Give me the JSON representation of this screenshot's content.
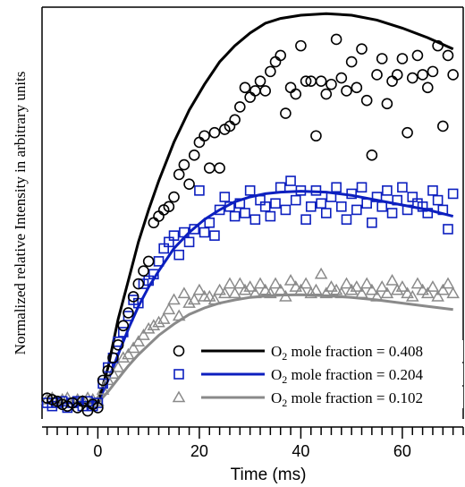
{
  "chart_data": {
    "type": "scatter",
    "title": "",
    "xlabel": "Time (ms)",
    "ylabel": "Normalized relative Intensity in arbitrary units",
    "xlim": [
      -11,
      72
    ],
    "ylim": [
      -0.3,
      12.5
    ],
    "x_ticks": [
      0,
      20,
      40,
      60
    ],
    "legend_position": "bottom-right",
    "grid": false,
    "series": [
      {
        "name": "O2 mole fraction = 0.408",
        "label_prefix": "O",
        "label_sub": "2",
        "label_suffix": " mole fraction = 0.408",
        "color": "#000000",
        "marker": "circle",
        "fit_color": "#000000",
        "points": [
          [
            -10,
            0.35
          ],
          [
            -9,
            0.3
          ],
          [
            -8,
            0.25
          ],
          [
            -7,
            0.15
          ],
          [
            -6,
            0.1
          ],
          [
            -5,
            0.2
          ],
          [
            -4,
            0.05
          ],
          [
            -3,
            0.25
          ],
          [
            -2,
            -0.05
          ],
          [
            -1,
            0.15
          ],
          [
            0,
            0.05
          ],
          [
            1,
            0.9
          ],
          [
            2,
            1.2
          ],
          [
            3,
            1.6
          ],
          [
            4,
            2.0
          ],
          [
            5,
            2.6
          ],
          [
            6,
            3.0
          ],
          [
            7,
            3.5
          ],
          [
            8,
            3.9
          ],
          [
            9,
            4.3
          ],
          [
            10,
            4.6
          ],
          [
            11,
            5.8
          ],
          [
            12,
            6.0
          ],
          [
            13,
            6.2
          ],
          [
            14,
            6.3
          ],
          [
            15,
            6.6
          ],
          [
            16,
            7.3
          ],
          [
            17,
            7.6
          ],
          [
            18,
            7.0
          ],
          [
            19,
            7.9
          ],
          [
            20,
            8.3
          ],
          [
            21,
            8.5
          ],
          [
            22,
            7.5
          ],
          [
            23,
            8.6
          ],
          [
            24,
            7.5
          ],
          [
            25,
            8.7
          ],
          [
            26,
            8.8
          ],
          [
            27,
            9.0
          ],
          [
            28,
            9.4
          ],
          [
            29,
            10.0
          ],
          [
            30,
            9.7
          ],
          [
            31,
            9.9
          ],
          [
            32,
            10.2
          ],
          [
            33,
            9.9
          ],
          [
            34,
            10.5
          ],
          [
            35,
            10.8
          ],
          [
            36,
            11.0
          ],
          [
            37,
            9.2
          ],
          [
            38,
            10.0
          ],
          [
            39,
            9.8
          ],
          [
            40,
            11.3
          ],
          [
            41,
            10.2
          ],
          [
            42,
            10.2
          ],
          [
            43,
            8.5
          ],
          [
            44,
            10.2
          ],
          [
            45,
            9.8
          ],
          [
            46,
            10.1
          ],
          [
            47,
            11.5
          ],
          [
            48,
            10.3
          ],
          [
            49,
            9.9
          ],
          [
            50,
            10.8
          ],
          [
            51,
            10.0
          ],
          [
            52,
            11.2
          ],
          [
            53,
            9.6
          ],
          [
            54,
            7.9
          ],
          [
            55,
            10.4
          ],
          [
            56,
            10.9
          ],
          [
            57,
            9.5
          ],
          [
            58,
            10.2
          ],
          [
            59,
            10.4
          ],
          [
            60,
            10.9
          ],
          [
            61,
            8.6
          ],
          [
            62,
            10.3
          ],
          [
            63,
            11.0
          ],
          [
            64,
            10.4
          ],
          [
            65,
            10.0
          ],
          [
            66,
            10.5
          ],
          [
            67,
            11.3
          ],
          [
            68,
            8.8
          ],
          [
            69,
            11.0
          ],
          [
            70,
            10.4
          ]
        ]
      },
      {
        "name": "O2 mole fraction = 0.204",
        "label_prefix": "O",
        "label_sub": "2",
        "label_suffix": " mole fraction = 0.204",
        "color": "#0c1fbf",
        "marker": "square",
        "fit_color": "#0c1fbf",
        "points": [
          [
            -10,
            0.2
          ],
          [
            -9,
            0.1
          ],
          [
            -8,
            0.2
          ],
          [
            -7,
            0.25
          ],
          [
            -6,
            0.05
          ],
          [
            -5,
            0.2
          ],
          [
            -4,
            0.25
          ],
          [
            -3,
            0.1
          ],
          [
            -2,
            0.25
          ],
          [
            -1,
            0.1
          ],
          [
            0,
            0.2
          ],
          [
            1,
            0.8
          ],
          [
            2,
            1.3
          ],
          [
            3,
            1.6
          ],
          [
            4,
            2.1
          ],
          [
            5,
            2.4
          ],
          [
            6,
            2.9
          ],
          [
            7,
            3.4
          ],
          [
            8,
            3.3
          ],
          [
            9,
            3.9
          ],
          [
            10,
            4.0
          ],
          [
            11,
            4.2
          ],
          [
            12,
            4.6
          ],
          [
            13,
            5.0
          ],
          [
            14,
            5.2
          ],
          [
            15,
            5.4
          ],
          [
            16,
            4.8
          ],
          [
            17,
            5.5
          ],
          [
            18,
            5.2
          ],
          [
            19,
            5.6
          ],
          [
            20,
            6.8
          ],
          [
            21,
            5.5
          ],
          [
            22,
            5.8
          ],
          [
            23,
            5.4
          ],
          [
            24,
            6.2
          ],
          [
            25,
            6.6
          ],
          [
            26,
            6.3
          ],
          [
            27,
            6.0
          ],
          [
            28,
            6.4
          ],
          [
            29,
            6.1
          ],
          [
            30,
            6.8
          ],
          [
            31,
            5.9
          ],
          [
            32,
            6.5
          ],
          [
            33,
            6.3
          ],
          [
            34,
            6.0
          ],
          [
            35,
            6.4
          ],
          [
            36,
            6.9
          ],
          [
            37,
            6.2
          ],
          [
            38,
            7.1
          ],
          [
            39,
            6.5
          ],
          [
            40,
            6.8
          ],
          [
            41,
            5.9
          ],
          [
            42,
            6.3
          ],
          [
            43,
            6.8
          ],
          [
            44,
            6.4
          ],
          [
            45,
            6.1
          ],
          [
            46,
            6.6
          ],
          [
            47,
            6.9
          ],
          [
            48,
            6.3
          ],
          [
            49,
            5.9
          ],
          [
            50,
            6.7
          ],
          [
            51,
            6.2
          ],
          [
            52,
            6.9
          ],
          [
            53,
            6.4
          ],
          [
            54,
            5.8
          ],
          [
            55,
            6.6
          ],
          [
            56,
            6.3
          ],
          [
            57,
            6.8
          ],
          [
            58,
            6.1
          ],
          [
            59,
            6.5
          ],
          [
            60,
            6.9
          ],
          [
            61,
            6.2
          ],
          [
            62,
            6.6
          ],
          [
            63,
            6.4
          ],
          [
            64,
            6.3
          ],
          [
            65,
            6.1
          ],
          [
            66,
            6.8
          ],
          [
            67,
            6.5
          ],
          [
            68,
            6.2
          ],
          [
            69,
            5.6
          ],
          [
            70,
            6.7
          ]
        ]
      },
      {
        "name": "O2 mole fraction = 0.102",
        "label_prefix": "O",
        "label_sub": "2",
        "label_suffix": " mole fraction = 0.102",
        "color": "#8a8a8a",
        "marker": "triangle",
        "fit_color": "#8a8a8a",
        "points": [
          [
            -10,
            0.3
          ],
          [
            -9,
            0.35
          ],
          [
            -8,
            0.2
          ],
          [
            -7,
            0.3
          ],
          [
            -6,
            0.35
          ],
          [
            -5,
            0.2
          ],
          [
            -4,
            0.3
          ],
          [
            -3,
            0.25
          ],
          [
            -2,
            0.35
          ],
          [
            -1,
            0.3
          ],
          [
            0,
            0.25
          ],
          [
            1,
            0.6
          ],
          [
            2,
            0.9
          ],
          [
            3,
            1.1
          ],
          [
            4,
            1.3
          ],
          [
            5,
            1.6
          ],
          [
            6,
            1.7
          ],
          [
            7,
            1.9
          ],
          [
            8,
            2.1
          ],
          [
            9,
            2.3
          ],
          [
            10,
            2.5
          ],
          [
            11,
            2.6
          ],
          [
            12,
            2.7
          ],
          [
            13,
            2.8
          ],
          [
            14,
            3.1
          ],
          [
            15,
            3.4
          ],
          [
            16,
            2.9
          ],
          [
            17,
            3.6
          ],
          [
            18,
            3.3
          ],
          [
            19,
            3.4
          ],
          [
            20,
            3.7
          ],
          [
            21,
            3.5
          ],
          [
            22,
            3.5
          ],
          [
            23,
            3.4
          ],
          [
            24,
            3.7
          ],
          [
            25,
            3.6
          ],
          [
            26,
            3.9
          ],
          [
            27,
            3.6
          ],
          [
            28,
            3.9
          ],
          [
            29,
            3.7
          ],
          [
            30,
            3.8
          ],
          [
            31,
            3.6
          ],
          [
            32,
            3.9
          ],
          [
            33,
            3.7
          ],
          [
            34,
            3.6
          ],
          [
            35,
            3.9
          ],
          [
            36,
            3.7
          ],
          [
            37,
            3.5
          ],
          [
            38,
            4.0
          ],
          [
            39,
            3.8
          ],
          [
            40,
            3.7
          ],
          [
            41,
            3.9
          ],
          [
            42,
            3.6
          ],
          [
            43,
            3.7
          ],
          [
            44,
            4.2
          ],
          [
            45,
            3.6
          ],
          [
            46,
            3.8
          ],
          [
            47,
            3.7
          ],
          [
            48,
            3.6
          ],
          [
            49,
            3.9
          ],
          [
            50,
            3.7
          ],
          [
            51,
            3.8
          ],
          [
            52,
            3.6
          ],
          [
            53,
            3.9
          ],
          [
            54,
            3.7
          ],
          [
            55,
            3.5
          ],
          [
            56,
            3.8
          ],
          [
            57,
            3.6
          ],
          [
            58,
            4.0
          ],
          [
            59,
            3.7
          ],
          [
            60,
            3.8
          ],
          [
            61,
            3.6
          ],
          [
            62,
            3.5
          ],
          [
            63,
            3.9
          ],
          [
            64,
            3.7
          ],
          [
            65,
            3.6
          ],
          [
            66,
            3.8
          ],
          [
            67,
            3.5
          ],
          [
            68,
            3.7
          ],
          [
            69,
            3.9
          ],
          [
            70,
            3.6
          ]
        ]
      }
    ],
    "fits": [
      {
        "series": 0,
        "points": [
          [
            -10,
            0.2
          ],
          [
            0,
            0.2
          ],
          [
            2,
            1.3
          ],
          [
            4,
            2.8
          ],
          [
            6,
            4.0
          ],
          [
            8,
            5.2
          ],
          [
            10,
            6.2
          ],
          [
            12,
            7.1
          ],
          [
            15,
            8.3
          ],
          [
            18,
            9.3
          ],
          [
            21,
            10.1
          ],
          [
            24,
            10.8
          ],
          [
            27,
            11.3
          ],
          [
            30,
            11.7
          ],
          [
            33,
            12.0
          ],
          [
            36,
            12.15
          ],
          [
            40,
            12.25
          ],
          [
            45,
            12.3
          ],
          [
            50,
            12.25
          ],
          [
            55,
            12.1
          ],
          [
            60,
            11.85
          ],
          [
            65,
            11.55
          ],
          [
            70,
            11.2
          ]
        ]
      },
      {
        "series": 1,
        "points": [
          [
            -10,
            0.2
          ],
          [
            0,
            0.2
          ],
          [
            2,
            0.9
          ],
          [
            4,
            1.7
          ],
          [
            6,
            2.5
          ],
          [
            8,
            3.2
          ],
          [
            10,
            3.8
          ],
          [
            12,
            4.3
          ],
          [
            15,
            5.0
          ],
          [
            18,
            5.5
          ],
          [
            21,
            5.9
          ],
          [
            24,
            6.2
          ],
          [
            27,
            6.45
          ],
          [
            30,
            6.6
          ],
          [
            33,
            6.7
          ],
          [
            36,
            6.75
          ],
          [
            40,
            6.78
          ],
          [
            45,
            6.75
          ],
          [
            50,
            6.65
          ],
          [
            55,
            6.5
          ],
          [
            60,
            6.35
          ],
          [
            65,
            6.2
          ],
          [
            70,
            6.0
          ]
        ]
      },
      {
        "series": 2,
        "points": [
          [
            -10,
            0.2
          ],
          [
            0,
            0.2
          ],
          [
            2,
            0.55
          ],
          [
            4,
            0.95
          ],
          [
            6,
            1.35
          ],
          [
            8,
            1.7
          ],
          [
            10,
            2.0
          ],
          [
            12,
            2.3
          ],
          [
            15,
            2.65
          ],
          [
            18,
            2.95
          ],
          [
            21,
            3.15
          ],
          [
            24,
            3.3
          ],
          [
            27,
            3.4
          ],
          [
            30,
            3.48
          ],
          [
            33,
            3.52
          ],
          [
            36,
            3.55
          ],
          [
            40,
            3.56
          ],
          [
            45,
            3.53
          ],
          [
            50,
            3.48
          ],
          [
            55,
            3.4
          ],
          [
            60,
            3.3
          ],
          [
            65,
            3.2
          ],
          [
            70,
            3.1
          ]
        ]
      }
    ]
  }
}
